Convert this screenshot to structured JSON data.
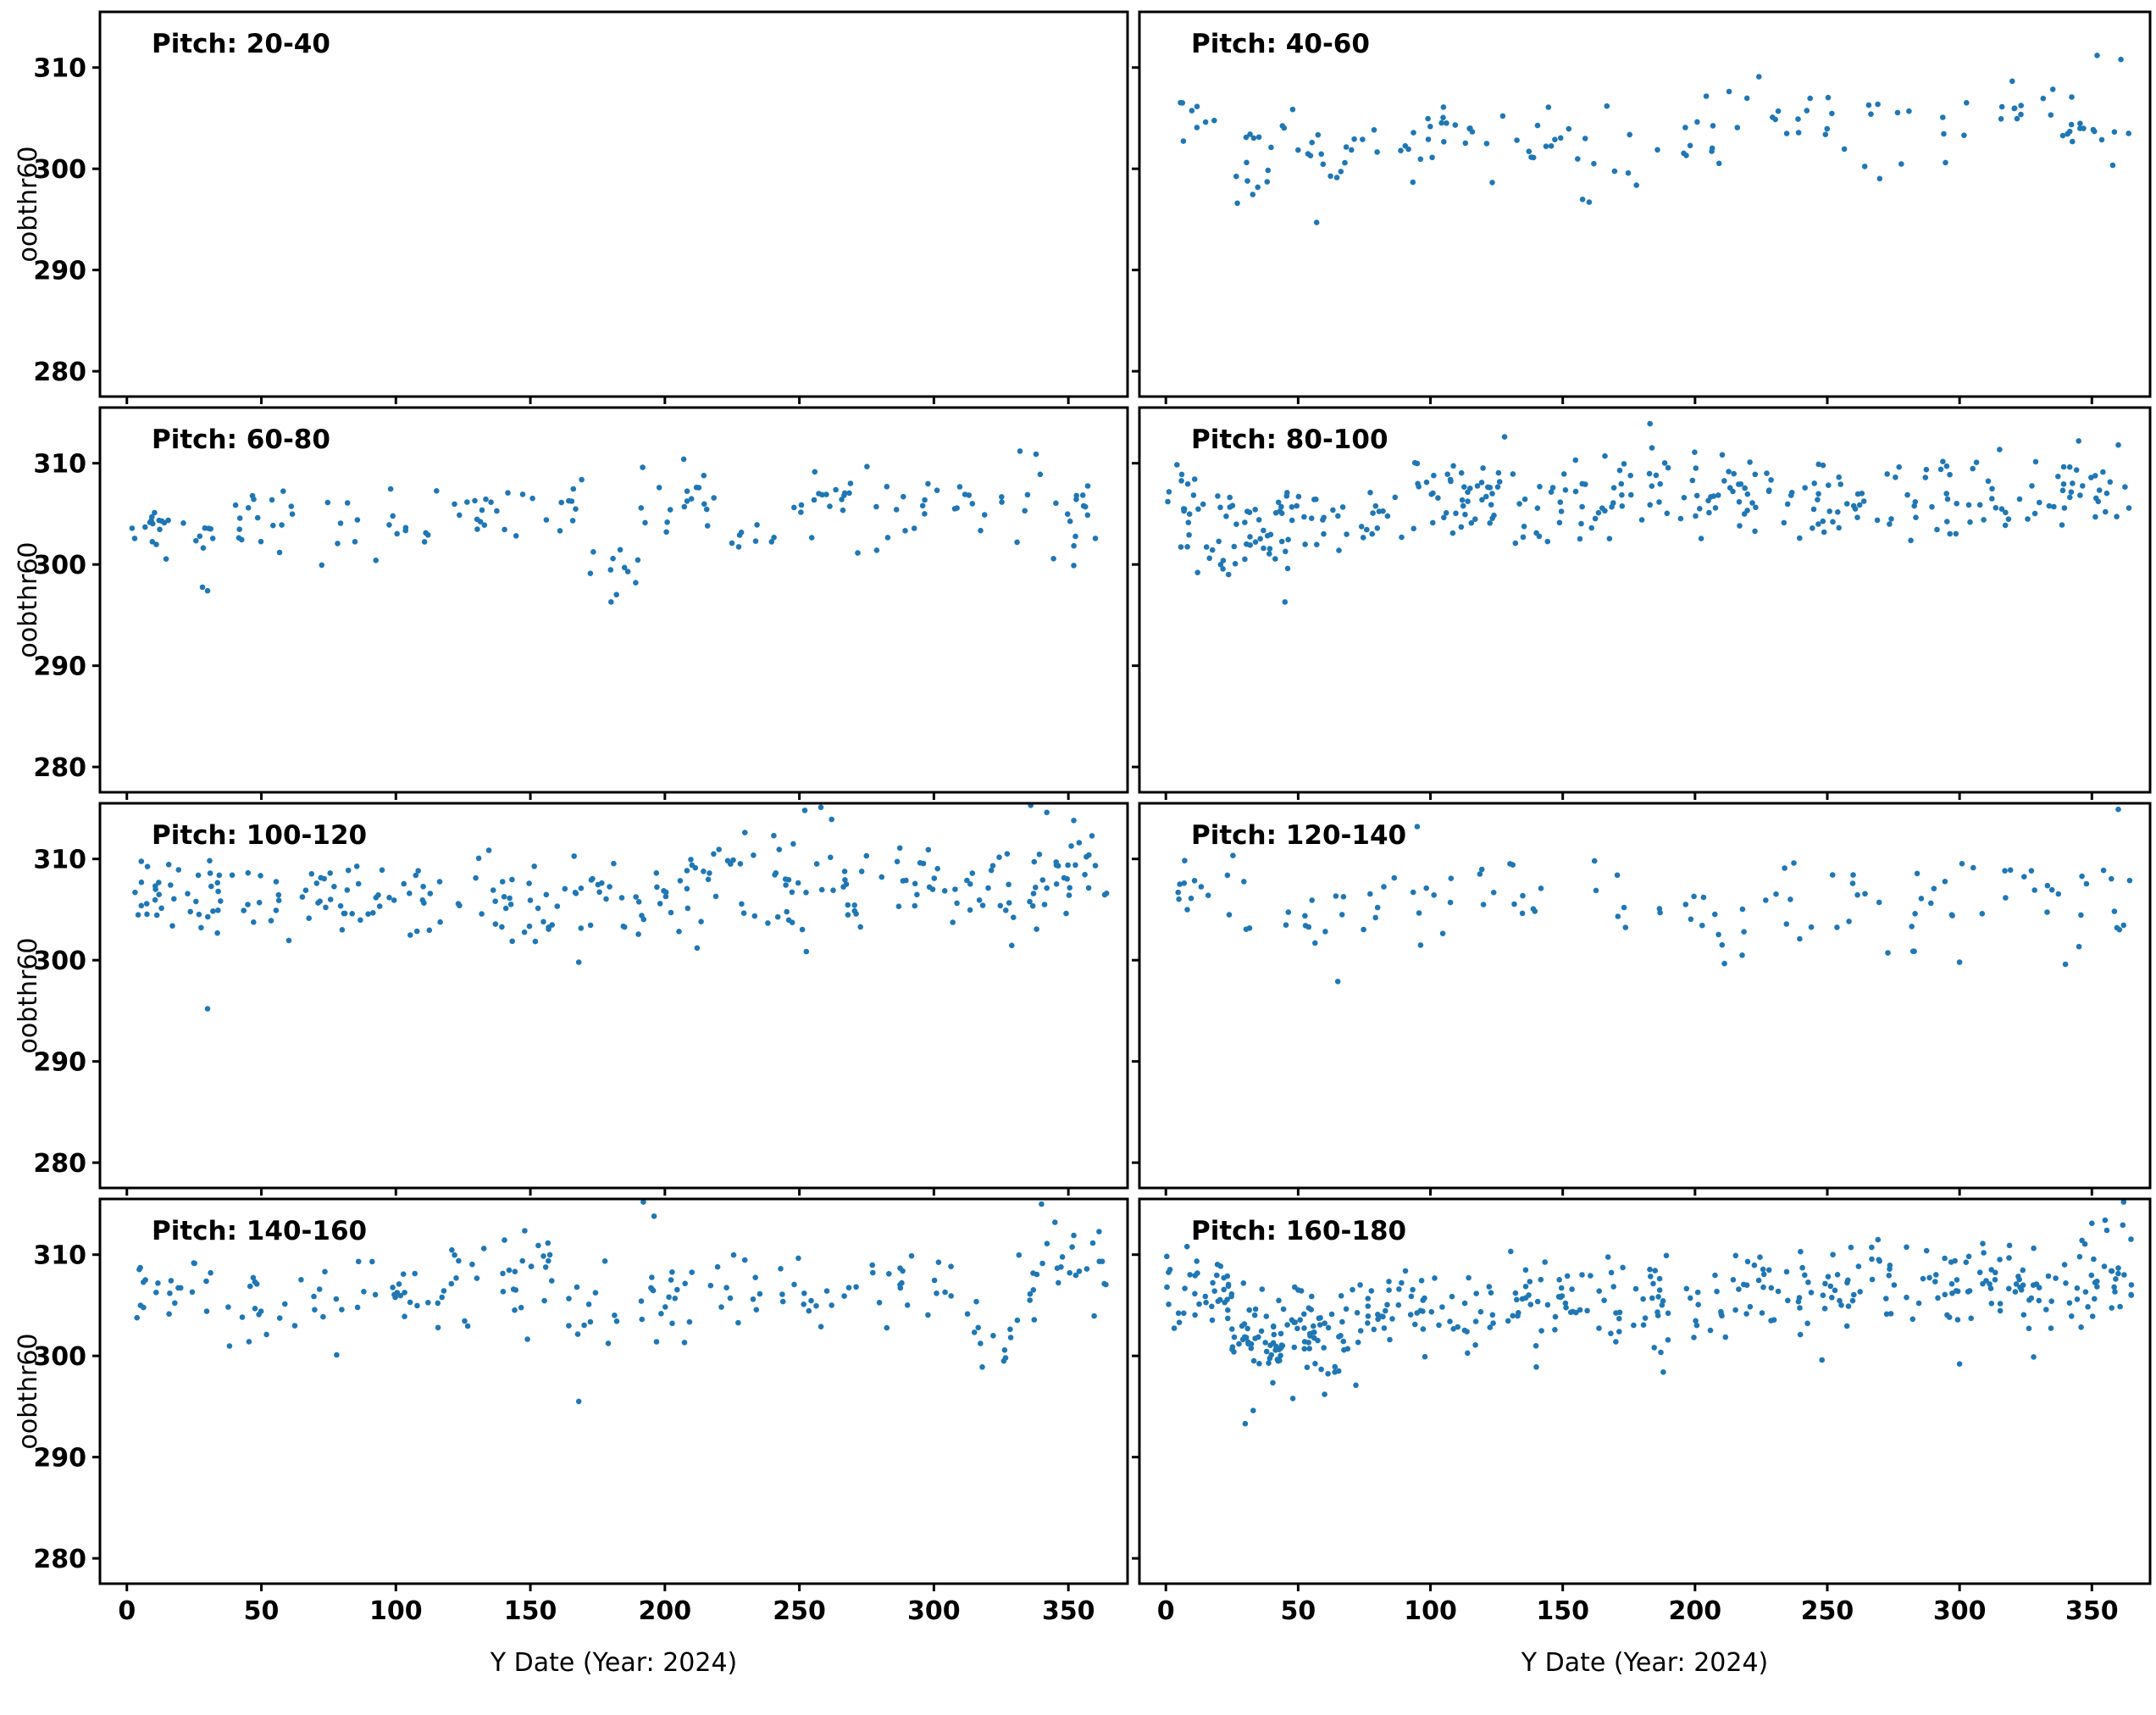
{
  "figure": {
    "background": "#ffffff",
    "dot_color": "#1f77b4",
    "axis_color": "#000000"
  },
  "chart_data": {
    "type": "scatter",
    "layout": "4 rows x 2 columns of subplots with shared x and y axes",
    "xlabel": "Y Date (Year: 2024)",
    "ylabel": "oobthr60",
    "xlim": [
      -10,
      372
    ],
    "ylim": [
      277.5,
      315.5
    ],
    "xticks": [
      0,
      50,
      100,
      150,
      200,
      250,
      300,
      350
    ],
    "yticks": [
      280,
      290,
      300,
      310
    ],
    "grid": false,
    "legend": "none",
    "cluster_format": "[x_min, x_max, y_min, y_max, n_points] uniform-x, center-weighted-y scatter cluster",
    "panels": [
      {
        "label": "Pitch: 20-40",
        "clusters": [],
        "points": []
      },
      {
        "label": "Pitch: 40-60",
        "clusters": [
          [
            5,
            20,
            302,
            308,
            8
          ],
          [
            22,
            40,
            296.5,
            304.5,
            12
          ],
          [
            44,
            60,
            297,
            306,
            10
          ],
          [
            62,
            80,
            297.5,
            306.5,
            10
          ],
          [
            84,
            100,
            298,
            306.5,
            9
          ],
          [
            100,
            118,
            299,
            307.5,
            11
          ],
          [
            120,
            140,
            298.5,
            306.5,
            7
          ],
          [
            140,
            170,
            296.5,
            308,
            13
          ],
          [
            174,
            200,
            298,
            306,
            8
          ],
          [
            200,
            232,
            300,
            310.5,
            13
          ],
          [
            233,
            262,
            301,
            309.5,
            10
          ],
          [
            263,
            300,
            298,
            310,
            11
          ],
          [
            300,
            335,
            301.5,
            309.5,
            12
          ],
          [
            335,
            365,
            298,
            311,
            16
          ]
        ],
        "points": [
          [
            57,
            294.7
          ],
          [
            352,
            311.2
          ],
          [
            361,
            310.8
          ],
          [
            27,
            296.6
          ],
          [
            160,
            296.7
          ]
        ]
      },
      {
        "label": "Pitch: 60-80",
        "clusters": [
          [
            1,
            16,
            299.5,
            308,
            16
          ],
          [
            18,
            36,
            297.5,
            305,
            9
          ],
          [
            38,
            76,
            299,
            308.5,
            19
          ],
          [
            78,
            116,
            299.5,
            308,
            16
          ],
          [
            118,
            170,
            301.5,
            309.2,
            26
          ],
          [
            172,
            190,
            296.3,
            302,
            10
          ],
          [
            190,
            220,
            300,
            310.3,
            18
          ],
          [
            224,
            246,
            301,
            305,
            8
          ],
          [
            248,
            290,
            301,
            310.5,
            26
          ],
          [
            292,
            322,
            302.5,
            308.5,
            14
          ],
          [
            325,
            365,
            300,
            311,
            20
          ]
        ],
        "points": [
          [
            30,
            297.4
          ],
          [
            180,
            296.3
          ],
          [
            207,
            310.4
          ],
          [
            332,
            311.2
          ],
          [
            338,
            310.9
          ],
          [
            352,
            299.9
          ]
        ]
      },
      {
        "label": "Pitch: 80-100",
        "clusters": [
          [
            0,
            40,
            300,
            310.5,
            40
          ],
          [
            18,
            50,
            297.5,
            303,
            14
          ],
          [
            40,
            90,
            300,
            309.5,
            40
          ],
          [
            90,
            130,
            302,
            311.5,
            45
          ],
          [
            130,
            175,
            301,
            311.5,
            40
          ],
          [
            175,
            220,
            302,
            312.5,
            42
          ],
          [
            220,
            268,
            302,
            311,
            40
          ],
          [
            268,
            320,
            301.5,
            311.5,
            40
          ],
          [
            320,
            365,
            302,
            311.5,
            34
          ]
        ],
        "points": [
          [
            45,
            296.3
          ],
          [
            12,
            299.2
          ],
          [
            128,
            312.6
          ],
          [
            183,
            313.9
          ],
          [
            345,
            312.2
          ],
          [
            360,
            311.8
          ],
          [
            6,
            308.9
          ]
        ]
      },
      {
        "label": "Pitch: 100-120",
        "clusters": [
          [
            0,
            30,
            302,
            310.5,
            26
          ],
          [
            30,
            75,
            300.5,
            310.5,
            34
          ],
          [
            75,
            120,
            301,
            310.5,
            34
          ],
          [
            120,
            170,
            300,
            312,
            36
          ],
          [
            170,
            215,
            301,
            311.5,
            34
          ],
          [
            215,
            255,
            300,
            313.5,
            32
          ],
          [
            255,
            300,
            302,
            312,
            30
          ],
          [
            300,
            340,
            301,
            312.5,
            30
          ],
          [
            340,
            365,
            303,
            315,
            24
          ]
        ],
        "points": [
          [
            30,
            295.2
          ],
          [
            252,
            314.8
          ],
          [
            258,
            315.1
          ],
          [
            262,
            313.9
          ],
          [
            336,
            315.3
          ],
          [
            342,
            314.6
          ],
          [
            352,
            313.8
          ],
          [
            212,
            301.2
          ],
          [
            168,
            299.8
          ]
        ]
      },
      {
        "label": "Pitch: 120-140",
        "clusters": [
          [
            0,
            30,
            303.5,
            311,
            14
          ],
          [
            30,
            70,
            299.5,
            308,
            13
          ],
          [
            70,
            110,
            300.5,
            310,
            14
          ],
          [
            110,
            135,
            302,
            310.5,
            9
          ],
          [
            135,
            175,
            302,
            310,
            8
          ],
          [
            185,
            225,
            299.5,
            307.5,
            14
          ],
          [
            225,
            270,
            302,
            311.5,
            16
          ],
          [
            270,
            310,
            299.5,
            311,
            15
          ],
          [
            310,
            345,
            302,
            311,
            10
          ],
          [
            345,
            365,
            300.5,
            310.5,
            11
          ]
        ],
        "points": [
          [
            95,
            313.2
          ],
          [
            65,
            297.9
          ],
          [
            162,
            309.8
          ],
          [
            360,
            314.9
          ],
          [
            340,
            299.6
          ],
          [
            300,
            299.8
          ]
        ]
      },
      {
        "label": "Pitch: 140-160",
        "clusters": [
          [
            0,
            30,
            303,
            310.5,
            20
          ],
          [
            30,
            75,
            300,
            310,
            22
          ],
          [
            75,
            115,
            302,
            310,
            20
          ],
          [
            115,
            165,
            301,
            312.5,
            38
          ],
          [
            165,
            200,
            300.5,
            311,
            18
          ],
          [
            200,
            235,
            300,
            311.5,
            22
          ],
          [
            235,
            270,
            301,
            311,
            16
          ],
          [
            270,
            310,
            302,
            311,
            20
          ],
          [
            310,
            330,
            299,
            306.5,
            10
          ],
          [
            330,
            365,
            302,
            313.5,
            26
          ]
        ],
        "points": [
          [
            168,
            295.5
          ],
          [
            192,
            315.2
          ],
          [
            196,
            313.8
          ],
          [
            340,
            315.0
          ],
          [
            345,
            313.2
          ],
          [
            318,
            298.9
          ],
          [
            326,
            299.5
          ],
          [
            352,
            311.9
          ],
          [
            78,
            300.1
          ]
        ]
      },
      {
        "label": "Pitch: 160-180",
        "clusters": [
          [
            0,
            25,
            302,
            310.5,
            40
          ],
          [
            25,
            75,
            296,
            308.5,
            75
          ],
          [
            25,
            60,
            299,
            305,
            30
          ],
          [
            75,
            120,
            299.5,
            309.5,
            50
          ],
          [
            120,
            165,
            300,
            310.5,
            45
          ],
          [
            165,
            210,
            299.5,
            310.5,
            45
          ],
          [
            210,
            255,
            301,
            311.5,
            45
          ],
          [
            255,
            300,
            301.5,
            312,
            45
          ],
          [
            300,
            340,
            301,
            312.5,
            45
          ],
          [
            340,
            365,
            302.5,
            313,
            35
          ]
        ],
        "points": [
          [
            30,
            293.3
          ],
          [
            33,
            294.6
          ],
          [
            48,
            295.8
          ],
          [
            60,
            296.2
          ],
          [
            362,
            315.2
          ],
          [
            355,
            313.4
          ],
          [
            350,
            313.1
          ],
          [
            8,
            310.8
          ],
          [
            140,
            298.9
          ],
          [
            188,
            298.4
          ],
          [
            248,
            299.6
          ],
          [
            300,
            299.2
          ],
          [
            328,
            299.9
          ]
        ]
      }
    ]
  }
}
